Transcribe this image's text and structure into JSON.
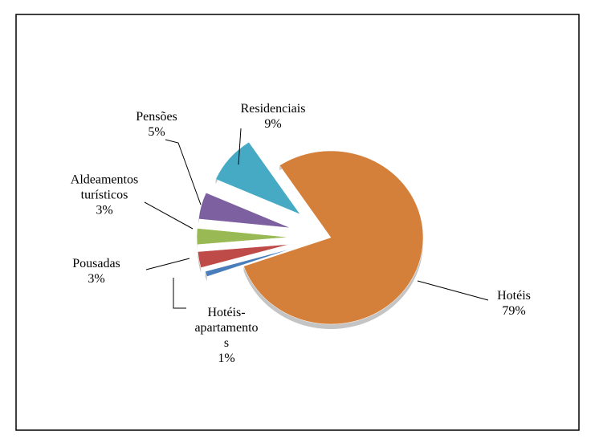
{
  "chart_data": {
    "type": "pie",
    "categories": [
      "Hotéis",
      "Hotéis-apartamentos",
      "Pousadas",
      "Aldeamentos turísticos",
      "Pensões",
      "Residenciais"
    ],
    "values": [
      79,
      1,
      3,
      3,
      5,
      9
    ],
    "value_labels": [
      "79%",
      "1%",
      "3%",
      "3%",
      "5%",
      "9%"
    ],
    "colors": [
      "#d4803a",
      "#4a7ebb",
      "#be4b48",
      "#98b954",
      "#7d60a0",
      "#46aac5"
    ]
  }
}
